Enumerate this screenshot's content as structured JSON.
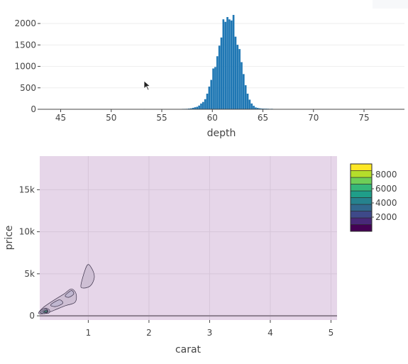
{
  "chart_data": [
    {
      "type": "histogram",
      "xlabel": "depth",
      "ylabel": "",
      "xlim": [
        43,
        79
      ],
      "ylim": [
        0,
        2250
      ],
      "xticks": [
        "45",
        "50",
        "55",
        "60",
        "65",
        "70",
        "75"
      ],
      "yticks": [
        "0",
        "500",
        "1000",
        "1500",
        "2000"
      ],
      "bar_color": "#1f77b4",
      "distribution": {
        "center": 61.8,
        "peak": 2200,
        "sigma_left": 1.2,
        "sigma_right": 0.85,
        "low_range": [
          51,
          66
        ],
        "low_count_max": 15
      }
    },
    {
      "type": "contour",
      "xlabel": "carat",
      "ylabel": "price",
      "xlim": [
        0.2,
        5.1
      ],
      "ylim": [
        -500,
        19000
      ],
      "xticks": [
        "1",
        "2",
        "3",
        "4",
        "5"
      ],
      "yticks": [
        "0",
        "5k",
        "10k",
        "15k"
      ],
      "background": "#e6d6e9",
      "colorbar": {
        "ticks": [
          "2000",
          "4000",
          "6000",
          "8000"
        ],
        "range": [
          0,
          9500
        ],
        "colors": [
          "#440154",
          "#482878",
          "#3e4989",
          "#31688e",
          "#26828e",
          "#1f9e89",
          "#35b779",
          "#6ece58",
          "#b5de2b",
          "#fde725"
        ]
      },
      "contours": [
        {
          "level": 1,
          "points": [
            [
              0.18,
              300
            ],
            [
              0.26,
              1000
            ],
            [
              0.42,
              1800
            ],
            [
              0.6,
              2600
            ],
            [
              0.72,
              3200
            ],
            [
              0.8,
              2600
            ],
            [
              0.78,
              1600
            ],
            [
              0.62,
              1200
            ],
            [
              0.45,
              700
            ],
            [
              0.3,
              300
            ]
          ]
        },
        {
          "level": 1,
          "points": [
            [
              0.88,
              3700
            ],
            [
              0.98,
              6000
            ],
            [
              1.06,
              5600
            ],
            [
              1.1,
              4600
            ],
            [
              1.04,
              3600
            ],
            [
              0.92,
              3300
            ]
          ]
        },
        {
          "level": 2,
          "points": [
            [
              0.2,
              400
            ],
            [
              0.28,
              900
            ],
            [
              0.36,
              700
            ],
            [
              0.34,
              300
            ]
          ]
        },
        {
          "level": 2,
          "points": [
            [
              0.38,
              1300
            ],
            [
              0.52,
              1900
            ],
            [
              0.58,
              1500
            ],
            [
              0.46,
              1100
            ]
          ]
        },
        {
          "level": 2,
          "points": [
            [
              0.62,
              2400
            ],
            [
              0.72,
              3000
            ],
            [
              0.76,
              2600
            ],
            [
              0.68,
              2200
            ]
          ]
        },
        {
          "level": 3,
          "points": [
            [
              0.22,
              400
            ],
            [
              0.3,
              800
            ],
            [
              0.34,
              500
            ],
            [
              0.28,
              250
            ]
          ]
        },
        {
          "level": 4,
          "points": [
            [
              0.25,
              450
            ],
            [
              0.31,
              700
            ],
            [
              0.33,
              480
            ],
            [
              0.28,
              350
            ]
          ]
        },
        {
          "level": 6,
          "points": [
            [
              0.27,
              480
            ],
            [
              0.31,
              620
            ],
            [
              0.32,
              490
            ],
            [
              0.29,
              420
            ]
          ]
        }
      ]
    }
  ]
}
